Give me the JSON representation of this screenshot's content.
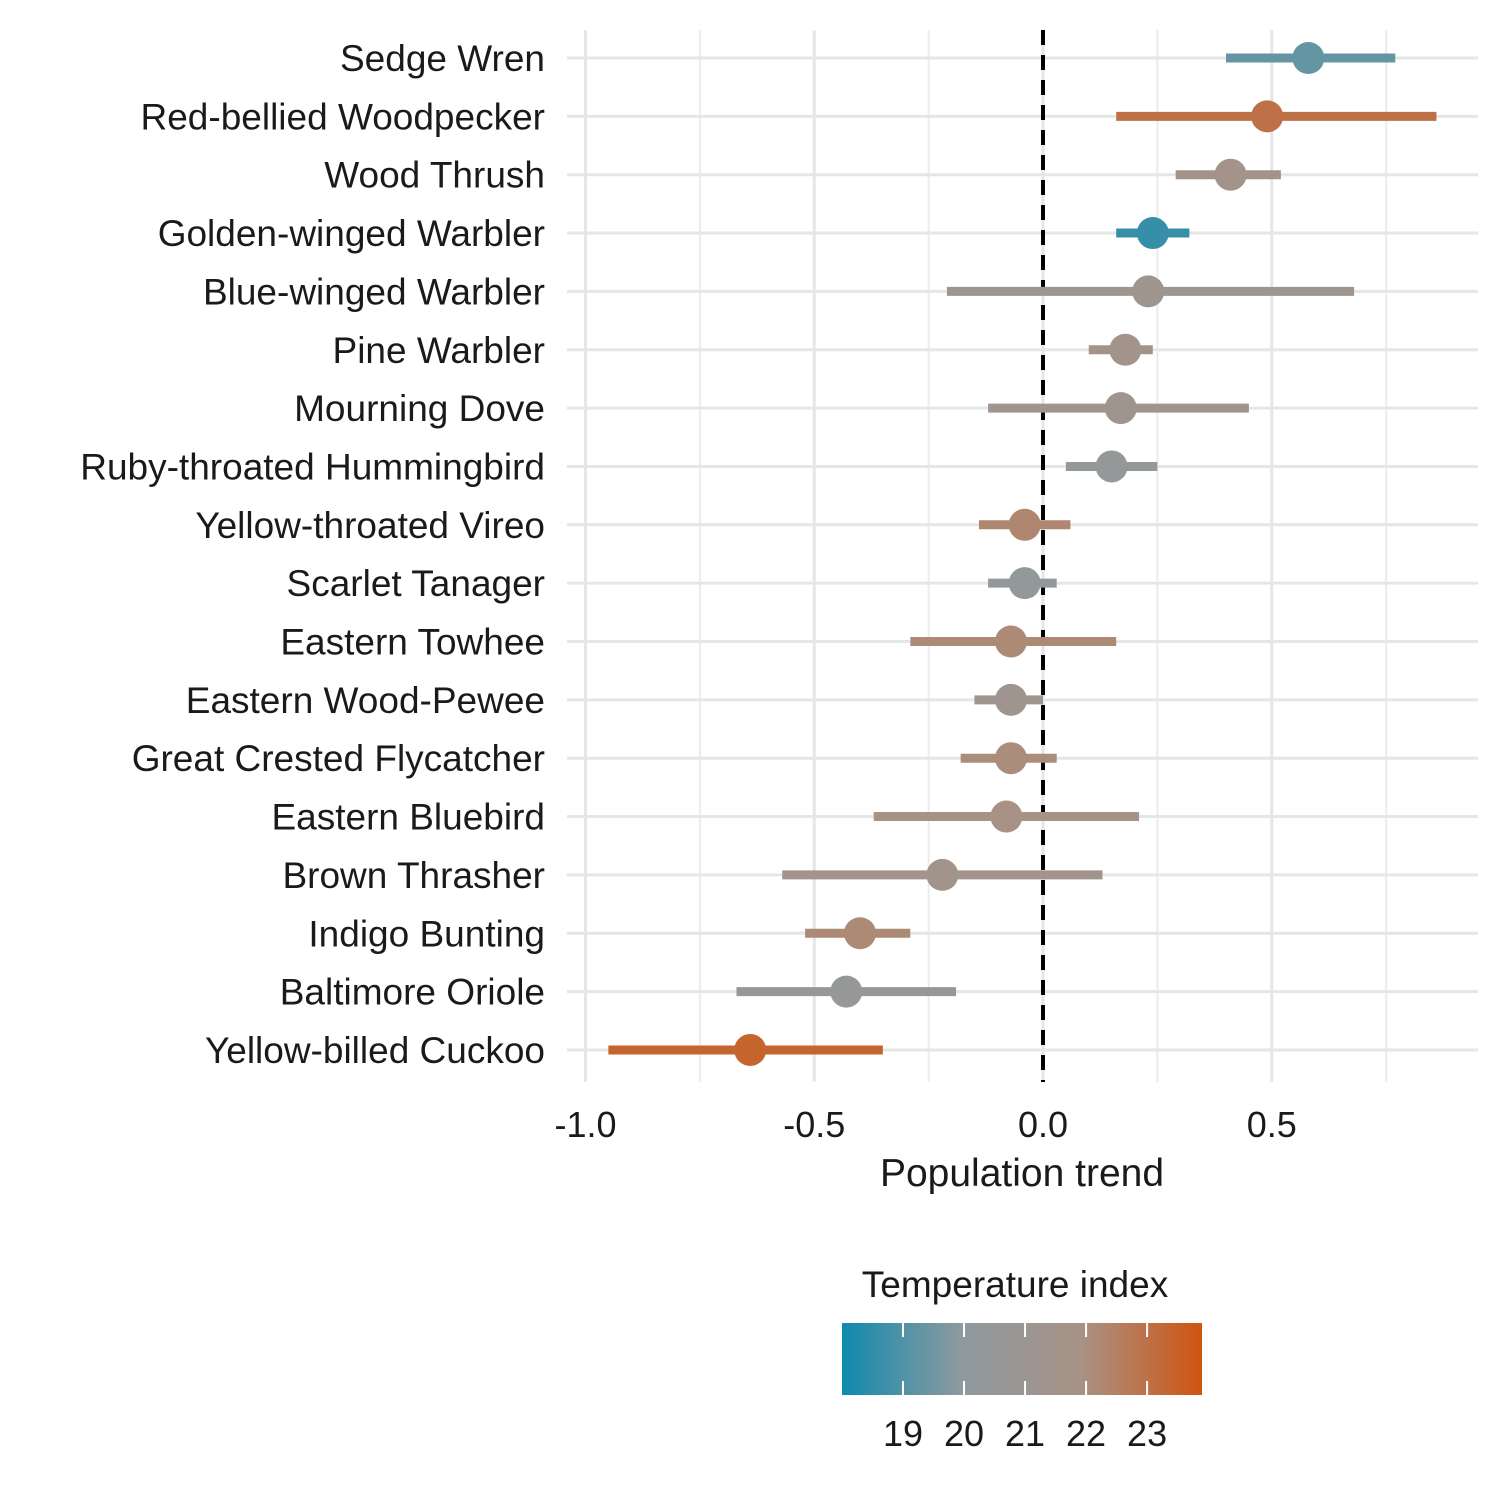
{
  "chart_data": {
    "type": "scatter",
    "subtype": "dot-and-whisker",
    "xlabel": "Population trend",
    "xlim": [
      -1.04,
      0.95
    ],
    "x_ticks": [
      -1.0,
      -0.5,
      0.0,
      0.5
    ],
    "x_tick_labels": [
      "-1.0",
      "-0.5",
      "0.0",
      "0.5"
    ],
    "reference_line": {
      "x": 0,
      "style": "dashed",
      "color": "#000000"
    },
    "grid": true,
    "series": [
      {
        "species": "Sedge Wren",
        "estimate": 0.58,
        "lower": 0.4,
        "upper": 0.77,
        "temperature_index": 19.3
      },
      {
        "species": "Red-bellied Woodpecker",
        "estimate": 0.49,
        "lower": 0.16,
        "upper": 0.86,
        "temperature_index": 23.0
      },
      {
        "species": "Wood Thrush",
        "estimate": 0.41,
        "lower": 0.29,
        "upper": 0.52,
        "temperature_index": 21.6
      },
      {
        "species": "Golden-winged Warbler",
        "estimate": 0.24,
        "lower": 0.16,
        "upper": 0.32,
        "temperature_index": 18.6
      },
      {
        "species": "Blue-winged Warbler",
        "estimate": 0.23,
        "lower": -0.21,
        "upper": 0.68,
        "temperature_index": 21.2
      },
      {
        "species": "Pine Warbler",
        "estimate": 0.18,
        "lower": 0.1,
        "upper": 0.24,
        "temperature_index": 21.5
      },
      {
        "species": "Mourning Dove",
        "estimate": 0.17,
        "lower": -0.12,
        "upper": 0.45,
        "temperature_index": 21.3
      },
      {
        "species": "Ruby-throated Hummingbird",
        "estimate": 0.15,
        "lower": 0.05,
        "upper": 0.25,
        "temperature_index": 20.4
      },
      {
        "species": "Yellow-throated Vireo",
        "estimate": -0.04,
        "lower": -0.14,
        "upper": 0.06,
        "temperature_index": 22.3
      },
      {
        "species": "Scarlet Tanager",
        "estimate": -0.04,
        "lower": -0.12,
        "upper": 0.03,
        "temperature_index": 20.3
      },
      {
        "species": "Eastern Towhee",
        "estimate": -0.07,
        "lower": -0.29,
        "upper": 0.16,
        "temperature_index": 22.2
      },
      {
        "species": "Eastern Wood-Pewee",
        "estimate": -0.07,
        "lower": -0.15,
        "upper": 0.0,
        "temperature_index": 21.3
      },
      {
        "species": "Great Crested Flycatcher",
        "estimate": -0.07,
        "lower": -0.18,
        "upper": 0.03,
        "temperature_index": 22.1
      },
      {
        "species": "Eastern Bluebird",
        "estimate": -0.08,
        "lower": -0.37,
        "upper": 0.21,
        "temperature_index": 21.9
      },
      {
        "species": "Brown Thrasher",
        "estimate": -0.22,
        "lower": -0.57,
        "upper": 0.13,
        "temperature_index": 21.5
      },
      {
        "species": "Indigo Bunting",
        "estimate": -0.4,
        "lower": -0.52,
        "upper": -0.29,
        "temperature_index": 22.2
      },
      {
        "species": "Baltimore Oriole",
        "estimate": -0.43,
        "lower": -0.67,
        "upper": -0.19,
        "temperature_index": 20.5
      },
      {
        "species": "Yellow-billed Cuckoo",
        "estimate": -0.64,
        "lower": -0.95,
        "upper": -0.35,
        "temperature_index": 23.4
      }
    ],
    "legend": {
      "title": "Temperature index",
      "placement": "bottom",
      "type": "gradient",
      "range": [
        18.0,
        23.9
      ],
      "ticks": [
        19,
        20,
        21,
        22,
        23
      ],
      "tick_labels": [
        "19",
        "20",
        "21",
        "22",
        "23"
      ],
      "colors": [
        "#0f8aae",
        "#8f9a9e",
        "#a89286",
        "#d05410"
      ]
    }
  }
}
